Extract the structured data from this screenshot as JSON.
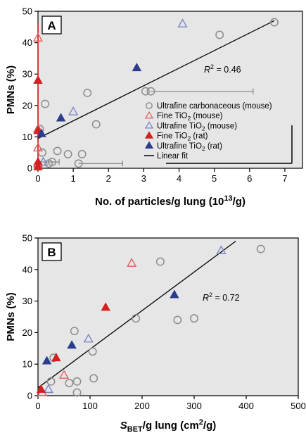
{
  "chart_data": [
    {
      "type": "scatter",
      "panel_label": "A",
      "xlabel": "No. of particles/g lung (10",
      "xlabel_sup": "13",
      "xlabel_tail": "/g)",
      "ylabel": "PMNs (%)",
      "xlim": [
        0,
        7.5
      ],
      "ylim": [
        0,
        50
      ],
      "xticks": [
        0,
        1,
        2,
        3,
        4,
        5,
        6,
        7
      ],
      "yticks": [
        0,
        10,
        20,
        30,
        40,
        50
      ],
      "background": "#e6e6e6",
      "r2_label": "= 0.46",
      "fit_line": {
        "x": [
          0,
          6.7
        ],
        "y": [
          9.5,
          47
        ]
      },
      "series": [
        {
          "name": "Ultrafine carbonaceous (mouse)",
          "name_parts": [
            "Ultrafine carbonaceous (mouse)"
          ],
          "marker": "circle-open",
          "color": "#8c8c8c",
          "x": [
            0.0,
            0.05,
            0.12,
            0.2,
            0.3,
            0.4,
            0.55,
            0.85,
            1.15,
            1.25,
            1.4,
            1.65,
            3.05,
            3.2,
            5.15,
            6.7
          ],
          "y": [
            0.5,
            12.5,
            5,
            20.5,
            1.5,
            2,
            5.5,
            4.5,
            1.5,
            4.5,
            24,
            14,
            24.5,
            24.5,
            42.5,
            46.5
          ]
        },
        {
          "name": "Fine TiO2 (mouse)",
          "name_parts": [
            "Fine TiO",
            "2",
            " (mouse)"
          ],
          "marker": "triangle-open",
          "color": "#e06060",
          "x": [
            0.0,
            0.0,
            0.0,
            0.0
          ],
          "y": [
            41.5,
            12.5,
            6.5,
            1.5
          ]
        },
        {
          "name": "Ultrafine TiO2 (mouse)",
          "name_parts": [
            "Ultrafine TiO",
            "2",
            " (mouse)"
          ],
          "marker": "triangle-open",
          "color": "#7a86c8",
          "x": [
            0.15,
            1.0,
            4.1
          ],
          "y": [
            2,
            18,
            46
          ]
        },
        {
          "name": "Fine TiO2 (rat)",
          "name_parts": [
            "Fine TiO",
            "2",
            " (rat)"
          ],
          "marker": "triangle-filled",
          "color": "#d42020",
          "x": [
            0.0,
            0.0,
            0.0,
            0.0
          ],
          "y": [
            28,
            12,
            2,
            0.5
          ]
        },
        {
          "name": "Ultrafine TiO2 (rat)",
          "name_parts": [
            "Ultrafine TiO",
            "2",
            " (rat)"
          ],
          "marker": "triangle-filled",
          "color": "#2b3c8f",
          "x": [
            0.1,
            0.65,
            2.8
          ],
          "y": [
            11,
            16,
            32
          ]
        },
        {
          "name": "Linear fit",
          "name_parts": [
            "Linear fit"
          ],
          "marker": "line",
          "color": "#000000"
        }
      ],
      "error_bars": [
        {
          "x_from": 0.0,
          "x_to": 0.6,
          "y": 2
        },
        {
          "x_from": 1.15,
          "x_to": 2.4,
          "y": 1.5
        },
        {
          "x_from": 3.2,
          "x_to": 6.1,
          "y": 24.5
        }
      ],
      "vertical_error_bar": {
        "x": 0.0,
        "y_from": 0,
        "y_to": 46,
        "color": "#d42020"
      },
      "legend_placement": "right-center"
    },
    {
      "type": "scatter",
      "panel_label": "B",
      "xlabel_main": "S",
      "xlabel_sub": "BET",
      "xlabel_mid": "/g lung (cm",
      "xlabel_sup": "2",
      "xlabel_tail": "/g)",
      "ylabel": "PMNs (%)",
      "xlim": [
        0,
        500
      ],
      "ylim": [
        0,
        50
      ],
      "xticks": [
        0,
        100,
        200,
        300,
        400,
        500
      ],
      "yticks": [
        0,
        10,
        20,
        30,
        40,
        50
      ],
      "background": "#e6e6e6",
      "r2_label": "= 0.72",
      "fit_line": {
        "x": [
          0,
          380
        ],
        "y": [
          2.5,
          49
        ]
      },
      "series": [
        {
          "name": "Ultrafine carbonaceous (mouse)",
          "marker": "circle-open",
          "color": "#8c8c8c",
          "x": [
            25,
            30,
            60,
            70,
            75,
            75,
            105,
            107,
            188,
            235,
            268,
            300,
            428
          ],
          "y": [
            4.5,
            12,
            4,
            20.5,
            4.5,
            1,
            14,
            5.5,
            24.5,
            42.5,
            24,
            24.5,
            46.5
          ]
        },
        {
          "name": "Fine TiO2 (mouse)",
          "marker": "triangle-open",
          "color": "#e06060",
          "x": [
            8,
            50,
            180
          ],
          "y": [
            1,
            6.5,
            42
          ]
        },
        {
          "name": "Ultrafine TiO2 (mouse)",
          "marker": "triangle-open",
          "color": "#7a86c8",
          "x": [
            20,
            97,
            352
          ],
          "y": [
            2,
            18,
            46
          ]
        },
        {
          "name": "Fine TiO2 (rat)",
          "marker": "triangle-filled",
          "color": "#d42020",
          "x": [
            6,
            35,
            130
          ],
          "y": [
            2,
            12,
            28
          ]
        },
        {
          "name": "Ultrafine TiO2 (rat)",
          "marker": "triangle-filled",
          "color": "#2b3c8f",
          "x": [
            17,
            65,
            262
          ],
          "y": [
            11,
            16,
            32
          ]
        }
      ]
    }
  ]
}
